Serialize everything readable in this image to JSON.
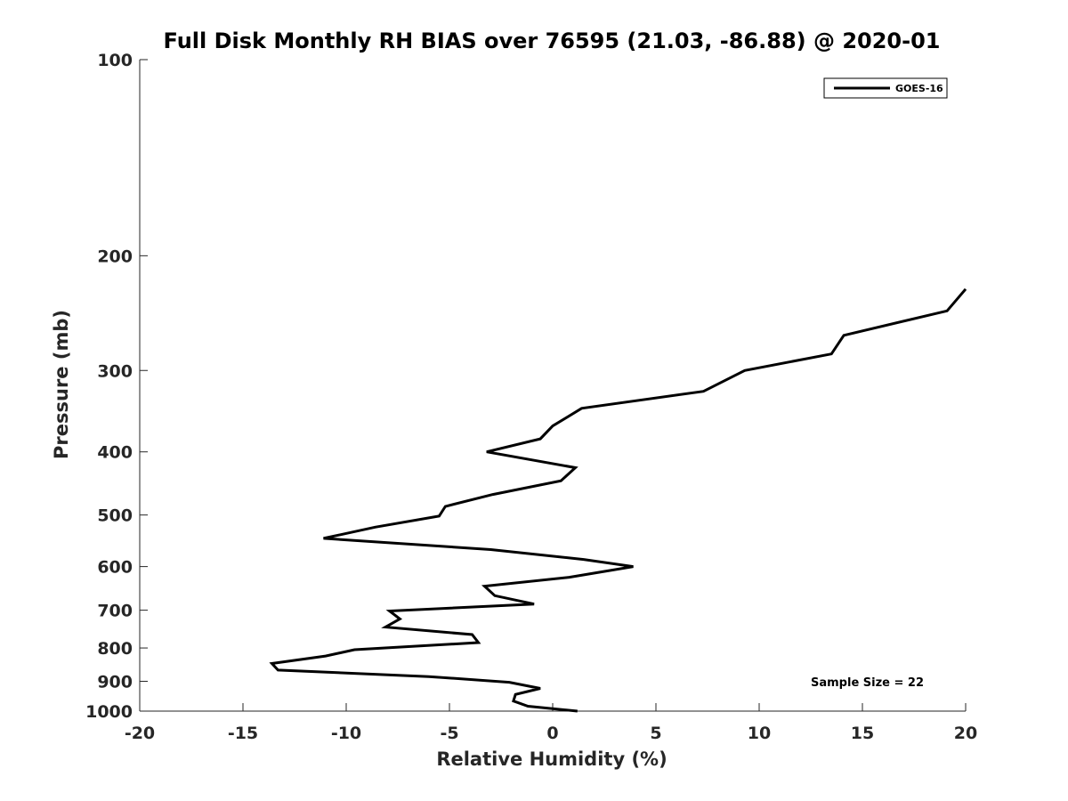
{
  "chart_data": {
    "type": "line",
    "title": "Full Disk Monthly RH BIAS over 76595 (21.03, -86.88) @ 2020-01",
    "xlabel": "Relative Humidity (%)",
    "ylabel": "Pressure (mb)",
    "xlim": [
      -20,
      20
    ],
    "ylim": [
      100,
      1000
    ],
    "yscale": "log",
    "y_reversed": true,
    "grid": false,
    "legend_position": "top-right",
    "xticks": [
      -20,
      -15,
      -10,
      -5,
      0,
      5,
      10,
      15,
      20
    ],
    "xtick_labels": [
      "-20",
      "-15",
      "-10",
      "-5",
      "0",
      "5",
      "10",
      "15",
      "20"
    ],
    "yticks": [
      100,
      200,
      300,
      400,
      500,
      600,
      700,
      800,
      900,
      1000
    ],
    "ytick_labels": [
      "100",
      "200",
      "300",
      "400",
      "500",
      "600",
      "700",
      "800",
      "900",
      "1000"
    ],
    "series": [
      {
        "name": "GOES-16",
        "color": "#000000",
        "points": [
          {
            "p": 225,
            "rh": 20.0
          },
          {
            "p": 243,
            "rh": 19.1
          },
          {
            "p": 265,
            "rh": 14.1
          },
          {
            "p": 283,
            "rh": 13.5
          },
          {
            "p": 300,
            "rh": 9.3
          },
          {
            "p": 323,
            "rh": 7.3
          },
          {
            "p": 343,
            "rh": 1.4
          },
          {
            "p": 365,
            "rh": 0.0
          },
          {
            "p": 382,
            "rh": -0.6
          },
          {
            "p": 400,
            "rh": -3.2
          },
          {
            "p": 423,
            "rh": 1.1
          },
          {
            "p": 443,
            "rh": 0.4
          },
          {
            "p": 465,
            "rh": -2.9
          },
          {
            "p": 485,
            "rh": -5.2
          },
          {
            "p": 502,
            "rh": -5.5
          },
          {
            "p": 522,
            "rh": -8.6
          },
          {
            "p": 543,
            "rh": -11.1
          },
          {
            "p": 565,
            "rh": -3.0
          },
          {
            "p": 585,
            "rh": 1.5
          },
          {
            "p": 600,
            "rh": 3.9
          },
          {
            "p": 623,
            "rh": 0.8
          },
          {
            "p": 643,
            "rh": -3.3
          },
          {
            "p": 665,
            "rh": -2.8
          },
          {
            "p": 685,
            "rh": -0.9
          },
          {
            "p": 702,
            "rh": -7.9
          },
          {
            "p": 722,
            "rh": -7.4
          },
          {
            "p": 743,
            "rh": -8.1
          },
          {
            "p": 763,
            "rh": -3.9
          },
          {
            "p": 785,
            "rh": -3.6
          },
          {
            "p": 805,
            "rh": -9.6
          },
          {
            "p": 823,
            "rh": -11.0
          },
          {
            "p": 845,
            "rh": -13.6
          },
          {
            "p": 865,
            "rh": -13.3
          },
          {
            "p": 885,
            "rh": -6.0
          },
          {
            "p": 903,
            "rh": -2.1
          },
          {
            "p": 923,
            "rh": -0.6
          },
          {
            "p": 943,
            "rh": -1.8
          },
          {
            "p": 965,
            "rh": -1.9
          },
          {
            "p": 983,
            "rh": -1.2
          },
          {
            "p": 1000,
            "rh": 1.2
          }
        ]
      }
    ],
    "annotation": "Sample Size = 22"
  }
}
